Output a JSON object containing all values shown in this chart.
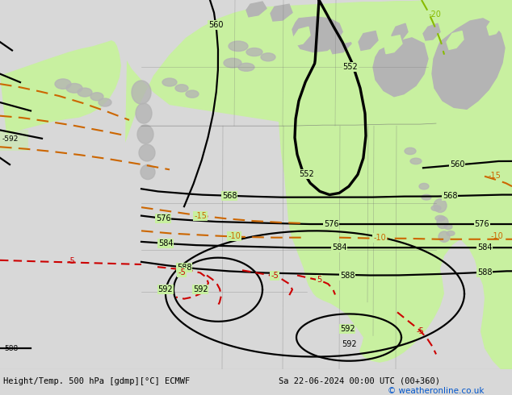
{
  "footer_left": "Height/Temp. 500 hPa [gdmp][°C] ECMWF",
  "footer_right": "Sa 22-06-2024 00:00 UTC (00+360)",
  "footer_credit": "© weatheronline.co.uk",
  "fig_width": 6.34,
  "fig_height": 4.9,
  "dpi": 100,
  "bg_color": "#d8d8d8",
  "ocean_color": "#d8d8d8",
  "land_green": "#c8f0a0",
  "land_gray": "#b4b4b4",
  "border_color": "#707070",
  "black_contour_lw": 1.6,
  "orange_contour_lw": 1.5,
  "red_contour_lw": 1.5
}
